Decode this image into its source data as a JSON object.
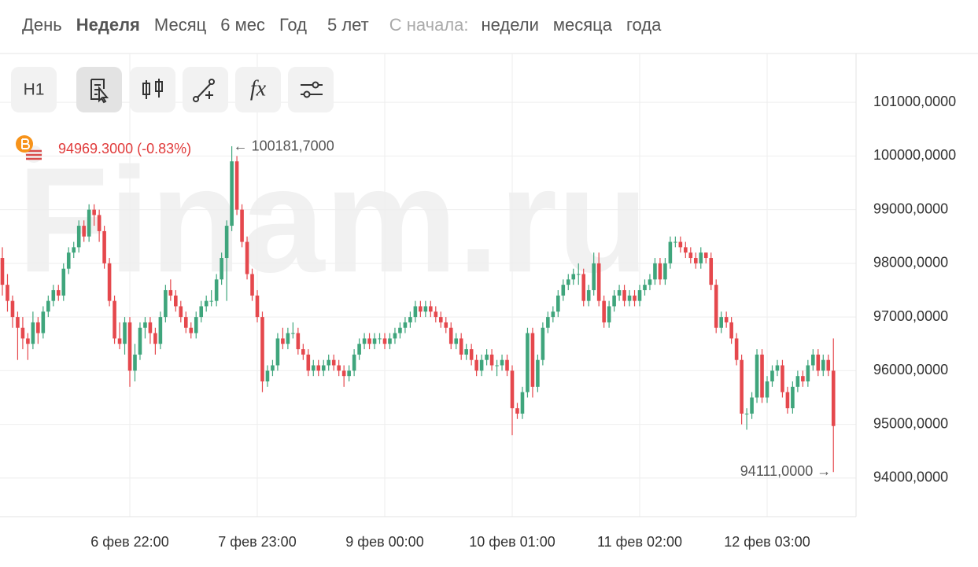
{
  "tabs": {
    "items": [
      "День",
      "Неделя",
      "Месяц",
      "6 мес",
      "Год",
      "5 лет"
    ],
    "since_label": "С начала:",
    "since_items": [
      "недели",
      "месяца",
      "года"
    ]
  },
  "toolbar": {
    "interval": "H1",
    "formula": "fx"
  },
  "chart_data": {
    "type": "candlestick",
    "watermark": "Finam.ru",
    "last_price_label": "94969.3000 (-0.83%)",
    "max_label": "← 100181,7000",
    "min_label": "94111,0000 →",
    "up_color": "#3fa57c",
    "down_color": "#e5484d",
    "grid": true,
    "ylim": [
      93280,
      101910
    ],
    "yticks": [
      {
        "value": 94000,
        "label": "94000,0000"
      },
      {
        "value": 95000,
        "label": "95000,0000"
      },
      {
        "value": 96000,
        "label": "96000,0000"
      },
      {
        "value": 97000,
        "label": "97000,0000"
      },
      {
        "value": 98000,
        "label": "98000,0000"
      },
      {
        "value": 99000,
        "label": "99000,0000"
      },
      {
        "value": 100000,
        "label": "100000,0000"
      },
      {
        "value": 101000,
        "label": "101000,0000"
      }
    ],
    "categories": [
      null,
      null,
      null,
      null,
      null,
      null,
      null,
      null,
      null,
      null,
      null,
      null,
      null,
      null,
      null,
      null,
      null,
      null,
      null,
      null,
      null,
      null,
      null,
      null,
      null,
      "6 фев 22:00",
      null,
      null,
      null,
      null,
      null,
      null,
      null,
      null,
      null,
      null,
      null,
      null,
      null,
      null,
      null,
      null,
      null,
      null,
      null,
      null,
      null,
      null,
      null,
      null,
      "7 фев 23:00",
      null,
      null,
      null,
      null,
      null,
      null,
      null,
      null,
      null,
      null,
      null,
      null,
      null,
      null,
      null,
      null,
      null,
      null,
      null,
      null,
      null,
      null,
      null,
      null,
      "9 фев 00:00",
      null,
      null,
      null,
      null,
      null,
      null,
      null,
      null,
      null,
      null,
      null,
      null,
      null,
      null,
      null,
      null,
      null,
      null,
      null,
      null,
      null,
      null,
      null,
      null,
      "10 фев 01:00",
      null,
      null,
      null,
      null,
      null,
      null,
      null,
      null,
      null,
      null,
      null,
      null,
      null,
      null,
      null,
      null,
      null,
      null,
      null,
      null,
      null,
      null,
      null,
      null,
      "11 фев 02:00",
      null,
      null,
      null,
      null,
      null,
      null,
      null,
      null,
      null,
      null,
      null,
      null,
      null,
      null,
      null,
      null,
      null,
      null,
      null,
      null,
      null,
      null,
      null,
      null,
      "12 фев 03:00",
      null,
      null,
      null,
      null,
      null,
      null,
      null,
      null,
      null,
      null,
      null,
      null,
      null
    ],
    "candles": [
      [
        98100,
        98300,
        97400,
        97600
      ],
      [
        97600,
        97800,
        97100,
        97300
      ],
      [
        97300,
        97400,
        96800,
        97000
      ],
      [
        97000,
        97100,
        96200,
        96800
      ],
      [
        96800,
        97000,
        96400,
        96600
      ],
      [
        96600,
        96700,
        96200,
        96500
      ],
      [
        96500,
        97100,
        96400,
        96900
      ],
      [
        96900,
        97000,
        96500,
        96700
      ],
      [
        96700,
        97200,
        96600,
        97100
      ],
      [
        97100,
        97400,
        97000,
        97300
      ],
      [
        97300,
        97600,
        97200,
        97500
      ],
      [
        97500,
        97600,
        97300,
        97400
      ],
      [
        97400,
        98000,
        97300,
        97900
      ],
      [
        97900,
        98300,
        97800,
        98200
      ],
      [
        98200,
        98400,
        98100,
        98300
      ],
      [
        98300,
        98800,
        98200,
        98700
      ],
      [
        98700,
        98800,
        98400,
        98500
      ],
      [
        98500,
        99100,
        98400,
        99000
      ],
      [
        99000,
        99100,
        98700,
        98900
      ],
      [
        98900,
        99000,
        98400,
        98600
      ],
      [
        98600,
        98700,
        97900,
        98000
      ],
      [
        98000,
        98100,
        97200,
        97300
      ],
      [
        97300,
        97400,
        96500,
        96600
      ],
      [
        96600,
        96900,
        96400,
        96500
      ],
      [
        96500,
        97000,
        96300,
        96900
      ],
      [
        96900,
        97000,
        95700,
        96000
      ],
      [
        96000,
        96500,
        95800,
        96300
      ],
      [
        96300,
        96900,
        96200,
        96800
      ],
      [
        96800,
        97000,
        96600,
        96900
      ],
      [
        96900,
        97000,
        96500,
        96700
      ],
      [
        96700,
        96800,
        96300,
        96500
      ],
      [
        96500,
        97100,
        96400,
        97000
      ],
      [
        97000,
        97600,
        96900,
        97500
      ],
      [
        97500,
        97700,
        97300,
        97400
      ],
      [
        97400,
        97500,
        97100,
        97200
      ],
      [
        97200,
        97300,
        96900,
        97000
      ],
      [
        97000,
        97100,
        96700,
        96800
      ],
      [
        96800,
        96900,
        96600,
        96700
      ],
      [
        96700,
        97100,
        96600,
        97000
      ],
      [
        97000,
        97300,
        96900,
        97200
      ],
      [
        97200,
        97400,
        97100,
        97300
      ],
      [
        97300,
        97500,
        97200,
        97300
      ],
      [
        97300,
        97800,
        97200,
        97700
      ],
      [
        97700,
        98200,
        97600,
        98100
      ],
      [
        98100,
        98800,
        97300,
        98700
      ],
      [
        98700,
        100181.7,
        98600,
        99900
      ],
      [
        99900,
        100000,
        98900,
        99000
      ],
      [
        99000,
        99100,
        98300,
        98400
      ],
      [
        98400,
        98500,
        97700,
        97800
      ],
      [
        97800,
        97900,
        97300,
        97400
      ],
      [
        97400,
        97500,
        96900,
        97000
      ],
      [
        97000,
        97100,
        95600,
        95800
      ],
      [
        95800,
        96100,
        95700,
        96000
      ],
      [
        96000,
        96200,
        95900,
        96100
      ],
      [
        96100,
        96700,
        96000,
        96600
      ],
      [
        96600,
        96800,
        96400,
        96500
      ],
      [
        96500,
        96800,
        96400,
        96700
      ],
      [
        96700,
        96900,
        96600,
        96700
      ],
      [
        96700,
        96800,
        96300,
        96400
      ],
      [
        96400,
        96500,
        96200,
        96300
      ],
      [
        96300,
        96400,
        95900,
        96000
      ],
      [
        96000,
        96200,
        95900,
        96100
      ],
      [
        96100,
        96200,
        95900,
        96000
      ],
      [
        96000,
        96200,
        95900,
        96100
      ],
      [
        96100,
        96300,
        96000,
        96200
      ],
      [
        96200,
        96300,
        96000,
        96100
      ],
      [
        96100,
        96200,
        95900,
        96000
      ],
      [
        96000,
        96100,
        95700,
        95900
      ],
      [
        95900,
        96100,
        95800,
        96000
      ],
      [
        96000,
        96400,
        95900,
        96300
      ],
      [
        96300,
        96600,
        96200,
        96500
      ],
      [
        96500,
        96700,
        96400,
        96600
      ],
      [
        96600,
        96700,
        96400,
        96500
      ],
      [
        96500,
        96700,
        96400,
        96600
      ],
      [
        96600,
        96700,
        96500,
        96600
      ],
      [
        96600,
        96700,
        96400,
        96500
      ],
      [
        96500,
        96700,
        96400,
        96600
      ],
      [
        96600,
        96800,
        96500,
        96700
      ],
      [
        96700,
        96900,
        96600,
        96800
      ],
      [
        96800,
        97000,
        96700,
        96900
      ],
      [
        96900,
        97100,
        96800,
        97000
      ],
      [
        97000,
        97300,
        96900,
        97200
      ],
      [
        97200,
        97300,
        97000,
        97100
      ],
      [
        97100,
        97300,
        97000,
        97200
      ],
      [
        97200,
        97300,
        97000,
        97100
      ],
      [
        97100,
        97200,
        96900,
        97000
      ],
      [
        97000,
        97100,
        96800,
        96900
      ],
      [
        96900,
        97000,
        96700,
        96800
      ],
      [
        96800,
        96900,
        96400,
        96500
      ],
      [
        96500,
        96700,
        96400,
        96600
      ],
      [
        96600,
        96700,
        96200,
        96300
      ],
      [
        96300,
        96500,
        96200,
        96400
      ],
      [
        96400,
        96500,
        96100,
        96200
      ],
      [
        96200,
        96300,
        95900,
        96000
      ],
      [
        96000,
        96300,
        95900,
        96200
      ],
      [
        96200,
        96400,
        96100,
        96300
      ],
      [
        96300,
        96400,
        96000,
        96100
      ],
      [
        96100,
        96200,
        95900,
        96100
      ],
      [
        96100,
        96300,
        96000,
        96200
      ],
      [
        96200,
        96300,
        95900,
        96000
      ],
      [
        96000,
        96100,
        94800,
        95300
      ],
      [
        95300,
        95400,
        95100,
        95200
      ],
      [
        95200,
        95700,
        95100,
        95600
      ],
      [
        95600,
        96800,
        95500,
        96700
      ],
      [
        96700,
        96800,
        95500,
        95700
      ],
      [
        95700,
        96300,
        95600,
        96200
      ],
      [
        96200,
        96900,
        96100,
        96800
      ],
      [
        96800,
        97100,
        96700,
        97000
      ],
      [
        97000,
        97200,
        96900,
        97100
      ],
      [
        97100,
        97500,
        97000,
        97400
      ],
      [
        97400,
        97700,
        97300,
        97600
      ],
      [
        97600,
        97800,
        97500,
        97700
      ],
      [
        97700,
        97900,
        97600,
        97800
      ],
      [
        97800,
        98000,
        97600,
        97800
      ],
      [
        97800,
        97900,
        97200,
        97300
      ],
      [
        97300,
        97600,
        97200,
        97500
      ],
      [
        97500,
        98200,
        97400,
        98000
      ],
      [
        98000,
        98200,
        97200,
        97300
      ],
      [
        97300,
        97400,
        96800,
        96900
      ],
      [
        96900,
        97300,
        96800,
        97200
      ],
      [
        97200,
        97500,
        97100,
        97400
      ],
      [
        97400,
        97600,
        97300,
        97500
      ],
      [
        97500,
        97600,
        97200,
        97300
      ],
      [
        97300,
        97500,
        97200,
        97400
      ],
      [
        97400,
        97500,
        97200,
        97300
      ],
      [
        97300,
        97600,
        97200,
        97500
      ],
      [
        97500,
        97700,
        97400,
        97600
      ],
      [
        97600,
        97800,
        97500,
        97700
      ],
      [
        97700,
        98100,
        97600,
        98000
      ],
      [
        98000,
        98100,
        97600,
        97700
      ],
      [
        97700,
        98100,
        97600,
        98000
      ],
      [
        98000,
        98500,
        97900,
        98400
      ],
      [
        98400,
        98500,
        98300,
        98400
      ],
      [
        98400,
        98500,
        98200,
        98300
      ],
      [
        98300,
        98400,
        98100,
        98200
      ],
      [
        98200,
        98300,
        98000,
        98100
      ],
      [
        98100,
        98200,
        97900,
        98000
      ],
      [
        98000,
        98300,
        97900,
        98200
      ],
      [
        98200,
        98200,
        98000,
        98100
      ],
      [
        98100,
        98200,
        97500,
        97600
      ],
      [
        97600,
        97700,
        96700,
        96800
      ],
      [
        96800,
        97100,
        96700,
        97000
      ],
      [
        97000,
        97100,
        96800,
        96900
      ],
      [
        96900,
        97000,
        96500,
        96600
      ],
      [
        96600,
        96700,
        96100,
        96200
      ],
      [
        96200,
        96300,
        95000,
        95200
      ],
      [
        95200,
        95300,
        94900,
        95200
      ],
      [
        95200,
        95600,
        95100,
        95500
      ],
      [
        95500,
        96400,
        95400,
        96300
      ],
      [
        96300,
        96400,
        95400,
        95500
      ],
      [
        95500,
        95900,
        95400,
        95800
      ],
      [
        95800,
        96100,
        95700,
        96000
      ],
      [
        96000,
        96200,
        95900,
        96100
      ],
      [
        96100,
        96200,
        95500,
        95600
      ],
      [
        95600,
        95700,
        95200,
        95300
      ],
      [
        95300,
        95800,
        95200,
        95700
      ],
      [
        95700,
        96000,
        95600,
        95900
      ],
      [
        95900,
        96000,
        95700,
        95800
      ],
      [
        95800,
        96200,
        95700,
        96100
      ],
      [
        96100,
        96400,
        96000,
        96300
      ],
      [
        96300,
        96400,
        95900,
        96000
      ],
      [
        96000,
        96300,
        95900,
        96200
      ],
      [
        96200,
        96300,
        95900,
        96000
      ],
      [
        96000,
        96600,
        94111,
        94969.3
      ]
    ]
  }
}
